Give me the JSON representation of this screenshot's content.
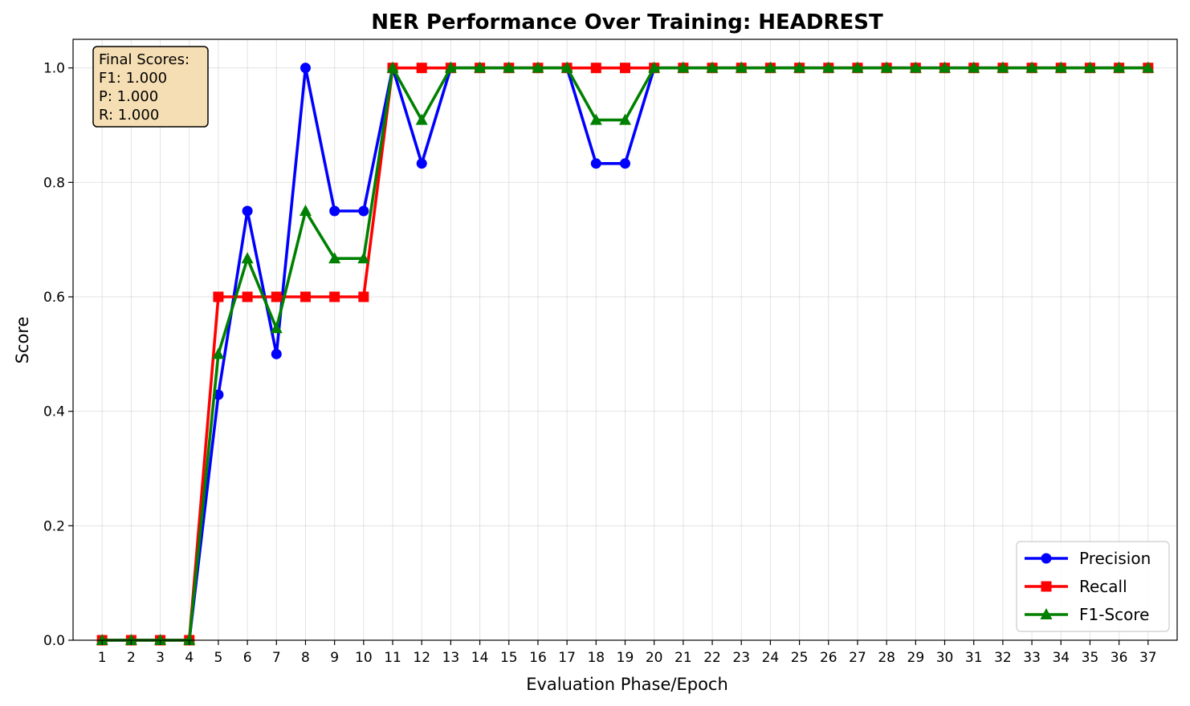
{
  "chart_data": {
    "type": "line",
    "title": "NER Performance Over Training: HEADREST",
    "xlabel": "Evaluation Phase/Epoch",
    "ylabel": "Score",
    "x": [
      1,
      2,
      3,
      4,
      5,
      6,
      7,
      8,
      9,
      10,
      11,
      12,
      13,
      14,
      15,
      16,
      17,
      18,
      19,
      20,
      21,
      22,
      23,
      24,
      25,
      26,
      27,
      28,
      29,
      30,
      31,
      32,
      33,
      34,
      35,
      36,
      37
    ],
    "xlim": [
      0.0,
      38.0
    ],
    "ylim": [
      0.0,
      1.05
    ],
    "yticks": [
      0.0,
      0.2,
      0.4,
      0.6,
      0.8,
      1.0
    ],
    "ytick_labels": [
      "0.0",
      "0.2",
      "0.4",
      "0.6",
      "0.8",
      "1.0"
    ],
    "grid": true,
    "legend_position": "bottom-right",
    "series": [
      {
        "name": "Precision",
        "color": "#0000ff",
        "marker": "circle",
        "values": [
          0,
          0,
          0,
          0,
          0.429,
          0.75,
          0.5,
          1.0,
          0.75,
          0.75,
          1.0,
          0.833,
          1.0,
          1.0,
          1.0,
          1.0,
          1.0,
          0.833,
          0.833,
          1.0,
          1.0,
          1.0,
          1.0,
          1.0,
          1.0,
          1.0,
          1.0,
          1.0,
          1.0,
          1.0,
          1.0,
          1.0,
          1.0,
          1.0,
          1.0,
          1.0,
          1.0
        ]
      },
      {
        "name": "Recall",
        "color": "#ff0000",
        "marker": "square",
        "values": [
          0,
          0,
          0,
          0,
          0.6,
          0.6,
          0.6,
          0.6,
          0.6,
          0.6,
          1.0,
          1.0,
          1.0,
          1.0,
          1.0,
          1.0,
          1.0,
          1.0,
          1.0,
          1.0,
          1.0,
          1.0,
          1.0,
          1.0,
          1.0,
          1.0,
          1.0,
          1.0,
          1.0,
          1.0,
          1.0,
          1.0,
          1.0,
          1.0,
          1.0,
          1.0,
          1.0
        ]
      },
      {
        "name": "F1-Score",
        "color": "#008000",
        "marker": "triangle",
        "values": [
          0,
          0,
          0,
          0,
          0.5,
          0.667,
          0.545,
          0.75,
          0.667,
          0.667,
          1.0,
          0.909,
          1.0,
          1.0,
          1.0,
          1.0,
          1.0,
          0.909,
          0.909,
          1.0,
          1.0,
          1.0,
          1.0,
          1.0,
          1.0,
          1.0,
          1.0,
          1.0,
          1.0,
          1.0,
          1.0,
          1.0,
          1.0,
          1.0,
          1.0,
          1.0,
          1.0
        ]
      }
    ],
    "annotation": {
      "lines": [
        "Final Scores:",
        "F1: 1.000",
        "P: 1.000",
        "R: 1.000"
      ],
      "background": "#f5deb3"
    }
  }
}
